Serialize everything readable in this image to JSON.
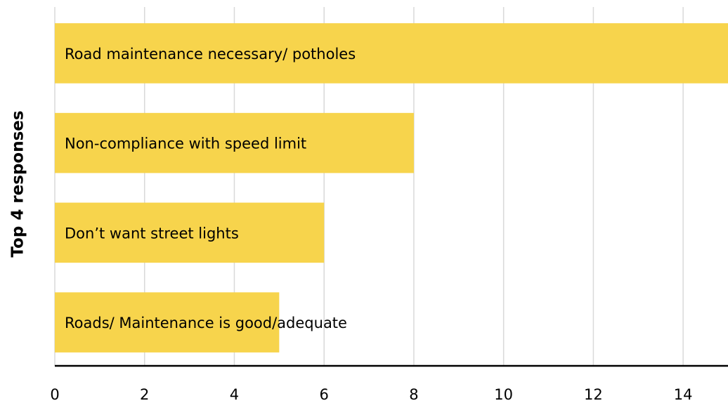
{
  "chart_data": {
    "type": "bar",
    "orientation": "horizontal",
    "y_label": "Top 4 responses",
    "categories": [
      "Road maintenance necessary/ potholes",
      "Non-compliance with speed limit",
      "Don’t want street lights",
      "Roads/ Maintenance is good/adequate"
    ],
    "values": [
      15,
      8,
      6,
      5
    ],
    "color": "#f7d44c",
    "xlim": [
      0,
      15
    ],
    "xticks": [
      0,
      2,
      4,
      6,
      8,
      10,
      12,
      14
    ],
    "grid": true
  }
}
